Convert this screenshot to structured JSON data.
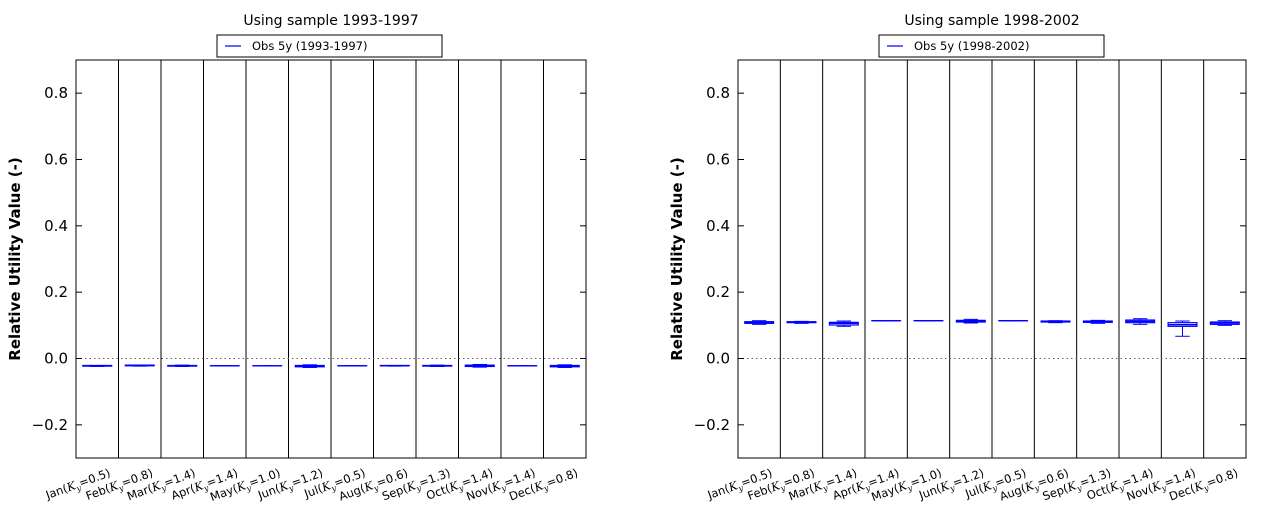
{
  "chart_data": [
    {
      "type": "box",
      "title": "Using sample 1993-1997",
      "xlabel": "",
      "ylabel": "Relative Utility Value (-)",
      "ylim": [
        -0.3,
        0.9
      ],
      "yticks": [
        -0.2,
        0.0,
        0.2,
        0.4,
        0.6,
        0.8
      ],
      "ytick_labels": [
        "−0.2",
        "0.0",
        "0.2",
        "0.4",
        "0.6",
        "0.8"
      ],
      "zero_line": true,
      "legend": {
        "placement": "top-center",
        "entries": [
          "Obs 5y (1993-1997)"
        ]
      },
      "colors": {
        "series": "#0000ff",
        "axes": "#000000",
        "zero_line": "#666666"
      },
      "categories": [
        {
          "month": "Jan",
          "k": "0.5"
        },
        {
          "month": "Feb",
          "k": "0.8"
        },
        {
          "month": "Mar",
          "k": "1.4"
        },
        {
          "month": "Apr",
          "k": "1.4"
        },
        {
          "month": "May",
          "k": "1.0"
        },
        {
          "month": "Jun",
          "k": "1.2"
        },
        {
          "month": "Jul",
          "k": "0.5"
        },
        {
          "month": "Aug",
          "k": "0.6"
        },
        {
          "month": "Sep",
          "k": "1.3"
        },
        {
          "month": "Oct",
          "k": "1.4"
        },
        {
          "month": "Nov",
          "k": "1.4"
        },
        {
          "month": "Dec",
          "k": "0.8"
        }
      ],
      "series": [
        {
          "name": "Obs 5y (1993-1997)",
          "boxes": [
            {
              "min": -0.024,
              "q1": -0.023,
              "median": -0.022,
              "q3": -0.021,
              "max": -0.021
            },
            {
              "min": -0.023,
              "q1": -0.022,
              "median": -0.021,
              "q3": -0.02,
              "max": -0.02
            },
            {
              "min": -0.024,
              "q1": -0.023,
              "median": -0.022,
              "q3": -0.021,
              "max": -0.02
            },
            {
              "min": -0.022,
              "q1": -0.022,
              "median": -0.022,
              "q3": -0.022,
              "max": -0.022
            },
            {
              "min": -0.022,
              "q1": -0.022,
              "median": -0.022,
              "q3": -0.022,
              "max": -0.022
            },
            {
              "min": -0.027,
              "q1": -0.025,
              "median": -0.023,
              "q3": -0.021,
              "max": -0.019
            },
            {
              "min": -0.022,
              "q1": -0.022,
              "median": -0.022,
              "q3": -0.022,
              "max": -0.022
            },
            {
              "min": -0.023,
              "q1": -0.022,
              "median": -0.022,
              "q3": -0.021,
              "max": -0.021
            },
            {
              "min": -0.024,
              "q1": -0.023,
              "median": -0.022,
              "q3": -0.021,
              "max": -0.02
            },
            {
              "min": -0.026,
              "q1": -0.024,
              "median": -0.022,
              "q3": -0.02,
              "max": -0.018
            },
            {
              "min": -0.022,
              "q1": -0.022,
              "median": -0.022,
              "q3": -0.022,
              "max": -0.022
            },
            {
              "min": -0.027,
              "q1": -0.025,
              "median": -0.023,
              "q3": -0.021,
              "max": -0.019
            }
          ]
        }
      ]
    },
    {
      "type": "box",
      "title": "Using sample 1998-2002",
      "xlabel": "",
      "ylabel": "Relative Utility Value (-)",
      "ylim": [
        -0.3,
        0.9
      ],
      "yticks": [
        -0.2,
        0.0,
        0.2,
        0.4,
        0.6,
        0.8
      ],
      "ytick_labels": [
        "−0.2",
        "0.0",
        "0.2",
        "0.4",
        "0.6",
        "0.8"
      ],
      "zero_line": true,
      "legend": {
        "placement": "top-center",
        "entries": [
          "Obs 5y (1998-2002)"
        ]
      },
      "colors": {
        "series": "#0000ff",
        "axes": "#000000",
        "zero_line": "#666666"
      },
      "categories": [
        {
          "month": "Jan",
          "k": "0.5"
        },
        {
          "month": "Feb",
          "k": "0.8"
        },
        {
          "month": "Mar",
          "k": "1.4"
        },
        {
          "month": "Apr",
          "k": "1.4"
        },
        {
          "month": "May",
          "k": "1.0"
        },
        {
          "month": "Jun",
          "k": "1.2"
        },
        {
          "month": "Jul",
          "k": "0.5"
        },
        {
          "month": "Aug",
          "k": "0.6"
        },
        {
          "month": "Sep",
          "k": "1.3"
        },
        {
          "month": "Oct",
          "k": "1.4"
        },
        {
          "month": "Nov",
          "k": "1.4"
        },
        {
          "month": "Dec",
          "k": "0.8"
        }
      ],
      "series": [
        {
          "name": "Obs 5y (1998-2002)",
          "boxes": [
            {
              "min": 0.103,
              "q1": 0.106,
              "median": 0.109,
              "q3": 0.111,
              "max": 0.114
            },
            {
              "min": 0.106,
              "q1": 0.108,
              "median": 0.109,
              "q3": 0.111,
              "max": 0.112
            },
            {
              "min": 0.097,
              "q1": 0.101,
              "median": 0.106,
              "q3": 0.109,
              "max": 0.113
            },
            {
              "min": 0.114,
              "q1": 0.114,
              "median": 0.114,
              "q3": 0.114,
              "max": 0.114
            },
            {
              "min": 0.114,
              "q1": 0.114,
              "median": 0.114,
              "q3": 0.114,
              "max": 0.114
            },
            {
              "min": 0.107,
              "q1": 0.11,
              "median": 0.113,
              "q3": 0.115,
              "max": 0.118
            },
            {
              "min": 0.114,
              "q1": 0.114,
              "median": 0.114,
              "q3": 0.114,
              "max": 0.114
            },
            {
              "min": 0.108,
              "q1": 0.11,
              "median": 0.111,
              "q3": 0.113,
              "max": 0.114
            },
            {
              "min": 0.106,
              "q1": 0.109,
              "median": 0.111,
              "q3": 0.113,
              "max": 0.115
            },
            {
              "min": 0.103,
              "q1": 0.108,
              "median": 0.112,
              "q3": 0.116,
              "max": 0.12
            },
            {
              "min": 0.067,
              "q1": 0.097,
              "median": 0.102,
              "q3": 0.108,
              "max": 0.113
            },
            {
              "min": 0.1,
              "q1": 0.103,
              "median": 0.107,
              "q3": 0.11,
              "max": 0.114
            }
          ]
        }
      ]
    }
  ]
}
